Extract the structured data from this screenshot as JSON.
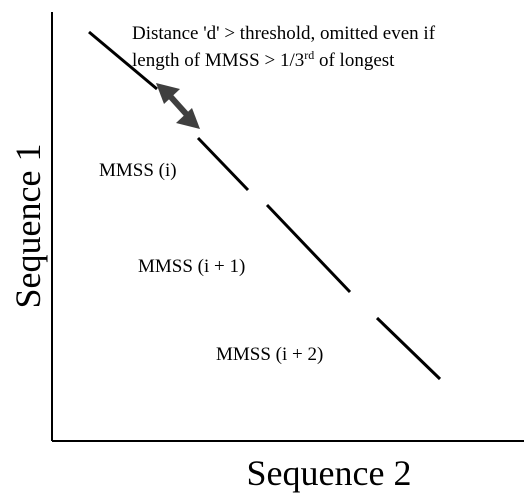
{
  "diagram": {
    "axis_y_label": "Sequence 1",
    "axis_x_label": "Sequence 2",
    "annotation": {
      "line1": "Distance 'd' > threshold, omitted even if",
      "line2_before": "length of MMSS > 1/3",
      "line2_sup": "rd",
      "line2_after": " of longest"
    },
    "segments": [
      {
        "label": "MMSS (i)"
      },
      {
        "label": "MMSS (i + 1)"
      },
      {
        "label": "MMSS (i + 2)"
      }
    ],
    "colors": {
      "line": "#000000",
      "arrow": "#3f3f3f",
      "background": "#ffffff"
    }
  }
}
